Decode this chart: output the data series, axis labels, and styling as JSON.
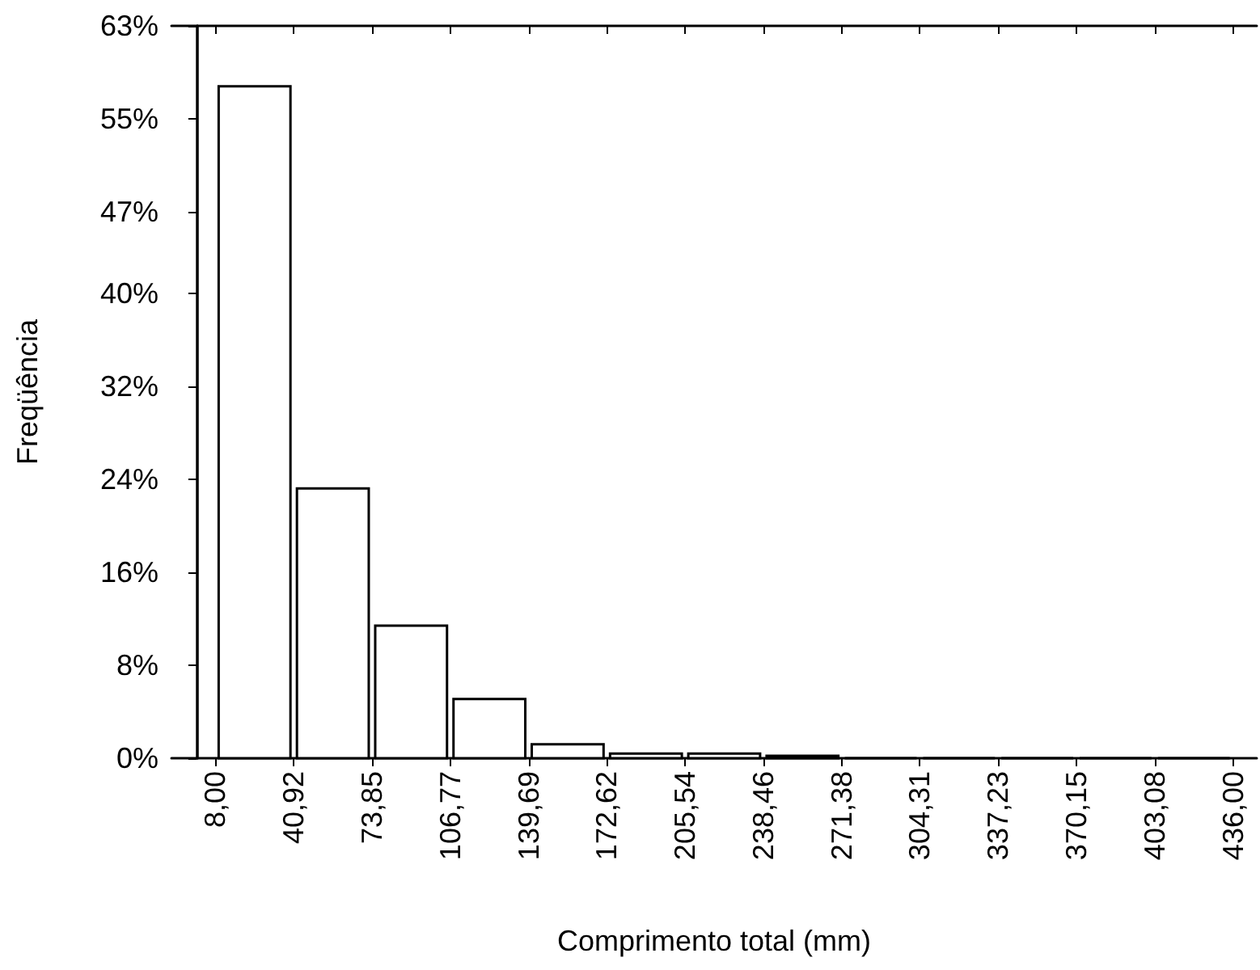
{
  "chart_data": {
    "type": "histogram",
    "xlabel": "Comprimento total (mm)",
    "ylabel": "Freqüência",
    "bins": [
      8.0,
      40.92,
      73.85,
      106.77,
      139.69,
      172.62,
      205.54,
      238.46,
      271.38,
      304.31,
      337.23,
      370.15,
      403.08,
      436.0
    ],
    "values": [
      57.8,
      23.2,
      11.4,
      5.1,
      1.2,
      0.4,
      0.4,
      0.2,
      0,
      0,
      0,
      0,
      0
    ],
    "color": "#ffffff",
    "xlim": [
      -10.5,
      446
    ],
    "xticks": [
      {
        "value": 8.0,
        "label": "8,00"
      },
      {
        "value": 40.92,
        "label": "40,92"
      },
      {
        "value": 73.85,
        "label": "73,85"
      },
      {
        "value": 106.77,
        "label": "106,77"
      },
      {
        "value": 139.69,
        "label": "139,69"
      },
      {
        "value": 172.62,
        "label": "172,62"
      },
      {
        "value": 205.54,
        "label": "205,54"
      },
      {
        "value": 238.46,
        "label": "238,46"
      },
      {
        "value": 271.38,
        "label": "271,38"
      },
      {
        "value": 304.31,
        "label": "304,31"
      },
      {
        "value": 337.23,
        "label": "337,23"
      },
      {
        "value": 370.15,
        "label": "370,15"
      },
      {
        "value": 403.08,
        "label": "403,08"
      },
      {
        "value": 436.0,
        "label": "436,00"
      }
    ],
    "ylim": [
      0,
      63
    ],
    "yticks": [
      {
        "value": 0,
        "label": "0%"
      },
      {
        "value": 8,
        "label": "8%"
      },
      {
        "value": 16,
        "label": "16%"
      },
      {
        "value": 24,
        "label": "24%"
      },
      {
        "value": 32,
        "label": "32%"
      },
      {
        "value": 40,
        "label": "40%"
      },
      {
        "value": 47,
        "label": "47%"
      },
      {
        "value": 55,
        "label": "55%"
      },
      {
        "value": 63,
        "label": "63%"
      }
    ],
    "grid": false
  }
}
